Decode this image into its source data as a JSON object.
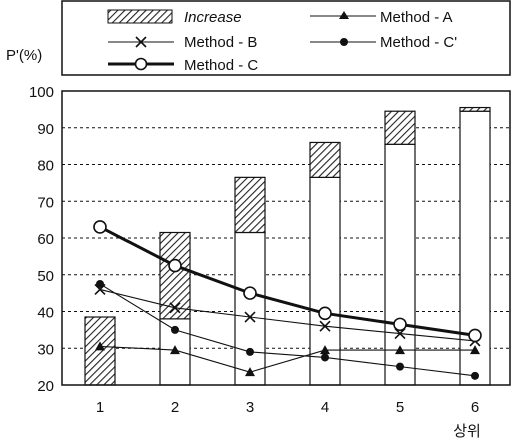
{
  "chart_data": {
    "type": "bar",
    "ylabel": "P'(%)",
    "xlabel": "상위",
    "ylim": [
      20,
      100
    ],
    "yticks": [
      20,
      30,
      40,
      50,
      60,
      70,
      80,
      90,
      100
    ],
    "categories": [
      "1",
      "2",
      "3",
      "4",
      "5",
      "6"
    ],
    "grid": "horizontal dashed",
    "legend_position": "top",
    "bars": {
      "name": "Increase",
      "base": [
        20,
        38,
        61.5,
        76.5,
        85.5,
        94.5
      ],
      "top": [
        38.5,
        61.5,
        76.5,
        86,
        94.5,
        95.5
      ]
    },
    "series": [
      {
        "name": "Method - A",
        "marker": "triangle",
        "values": [
          30.5,
          29.5,
          23.5,
          29.5,
          29.5,
          29.5
        ]
      },
      {
        "name": "Method - B",
        "marker": "cross",
        "values": [
          46,
          41,
          38.5,
          36,
          34,
          32
        ]
      },
      {
        "name": "Method - C",
        "marker": "open-circle",
        "values": [
          63,
          52.5,
          45,
          39.5,
          36.5,
          33.5
        ]
      },
      {
        "name": "Method - C'",
        "marker": "filled-circle",
        "values": [
          47.5,
          35,
          29,
          27.5,
          25,
          22.5
        ]
      }
    ]
  }
}
